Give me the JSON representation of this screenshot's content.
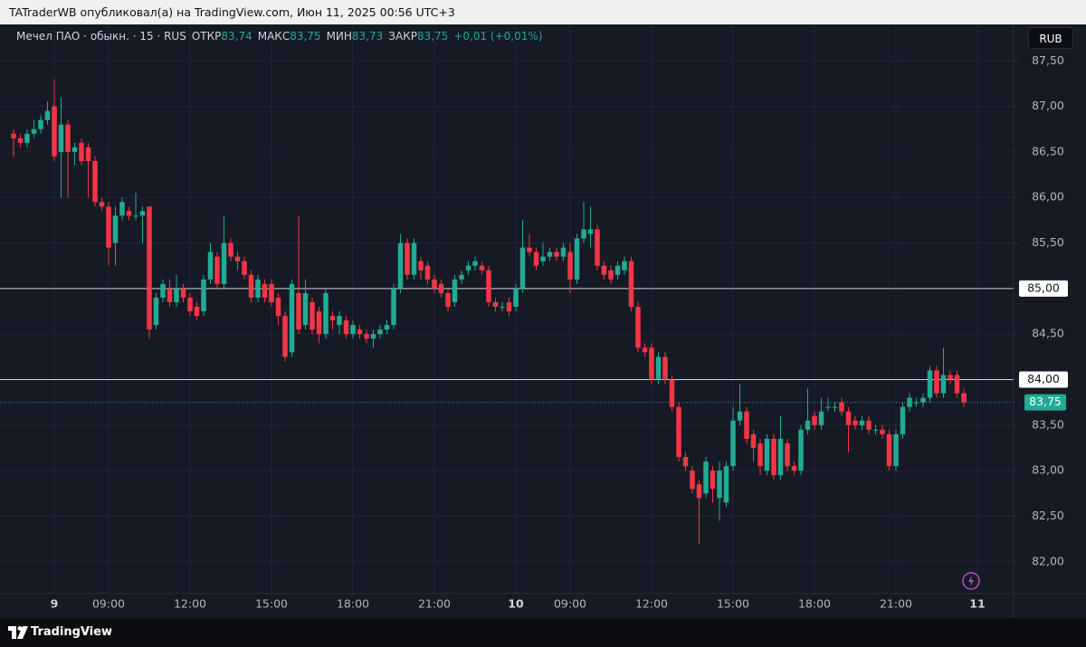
{
  "header": "TATraderWB опубликовал(а) на TradingView.com, Июн 11, 2025 00:56 UTC+3",
  "footer": "TradingView",
  "chart_data": {
    "type": "candlestick",
    "title": "Мечел ПАО · обыкн. · 15 · RUS",
    "ohlc_labels": [
      {
        "name": "ОТКР",
        "label": "83,74"
      },
      {
        "name": "МАКС",
        "label": "83,75"
      },
      {
        "name": "МИН",
        "label": "83,73"
      },
      {
        "name": "ЗАКР",
        "label": "83,75"
      }
    ],
    "change": "+0,01 (+0,01%)",
    "currency": "RUB",
    "up_color": "#22ab94",
    "down_color": "#f23645",
    "grid": true,
    "ylim": [
      81.65,
      87.9
    ],
    "yticks": [
      {
        "value": 82,
        "label": "82,00"
      },
      {
        "value": 82.5,
        "label": "82,50"
      },
      {
        "value": 83,
        "label": "83,00"
      },
      {
        "value": 83.5,
        "label": "83,50"
      },
      {
        "value": 84,
        "label": "84,00"
      },
      {
        "value": 84.5,
        "label": "84,50"
      },
      {
        "value": 85,
        "label": "85,00"
      },
      {
        "value": 85.5,
        "label": "85,50"
      },
      {
        "value": 86,
        "label": "86,00"
      },
      {
        "value": 86.5,
        "label": "86,50"
      },
      {
        "value": 87,
        "label": "87,00"
      },
      {
        "value": 87.5,
        "label": "87,50"
      }
    ],
    "price_lines": [
      {
        "value": 85,
        "label": "85,00"
      },
      {
        "value": 84,
        "label": "84,00"
      }
    ],
    "last_price": {
      "value": 83.75,
      "label": "83,75"
    },
    "categories": [
      null,
      null,
      null,
      null,
      null,
      null,
      "9",
      null,
      null,
      null,
      null,
      null,
      null,
      null,
      "09:00",
      null,
      null,
      null,
      null,
      null,
      null,
      null,
      null,
      null,
      null,
      null,
      "12:00",
      null,
      null,
      null,
      null,
      null,
      null,
      null,
      null,
      null,
      null,
      null,
      "15:00",
      null,
      null,
      null,
      null,
      null,
      null,
      null,
      null,
      null,
      null,
      null,
      "18:00",
      null,
      null,
      null,
      null,
      null,
      null,
      null,
      null,
      null,
      null,
      null,
      "21:00",
      null,
      null,
      null,
      null,
      null,
      null,
      null,
      null,
      null,
      null,
      null,
      "10",
      null,
      null,
      null,
      null,
      null,
      null,
      null,
      "09:00",
      null,
      null,
      null,
      null,
      null,
      null,
      null,
      null,
      null,
      null,
      null,
      "12:00",
      null,
      null,
      null,
      null,
      null,
      null,
      null,
      null,
      null,
      null,
      null,
      "15:00",
      null,
      null,
      null,
      null,
      null,
      null,
      null,
      null,
      null,
      null,
      null,
      "18:00",
      null,
      null,
      null,
      null,
      null,
      null,
      null,
      null,
      null,
      null,
      null,
      "21:00",
      null,
      null,
      null,
      null,
      null,
      null,
      null,
      null,
      null,
      null,
      null,
      "11"
    ],
    "open": [
      86.7,
      86.65,
      86.6,
      86.7,
      86.75,
      86.85,
      87.0,
      86.5,
      86.8,
      86.5,
      86.6,
      86.55,
      86.4,
      85.95,
      85.9,
      85.5,
      85.8,
      85.85,
      85.8,
      85.8,
      85.9,
      84.6,
      84.9,
      85.0,
      84.85,
      85.0,
      84.9,
      84.8,
      84.75,
      85.1,
      85.35,
      85.05,
      85.5,
      85.35,
      85.3,
      85.15,
      84.9,
      85.05,
      85.05,
      84.9,
      84.7,
      84.3,
      84.95,
      84.6,
      84.85,
      84.75,
      84.5,
      84.7,
      84.6,
      84.65,
      84.5,
      84.55,
      84.5,
      84.45,
      84.5,
      84.55,
      84.6,
      85.0,
      85.5,
      85.15,
      85.3,
      85.25,
      85.1,
      85.05,
      84.95,
      84.85,
      85.1,
      85.2,
      85.25,
      85.25,
      85.2,
      84.85,
      84.8,
      84.85,
      84.8,
      85.0,
      85.45,
      85.4,
      85.3,
      85.35,
      85.4,
      85.35,
      85.4,
      85.1,
      85.55,
      85.6,
      85.65,
      85.25,
      85.2,
      85.15,
      85.2,
      85.3,
      84.8,
      84.35,
      84.35,
      84.0,
      84.25,
      84.0,
      83.7,
      83.15,
      83.0,
      82.85,
      82.75,
      83.0,
      82.7,
      82.65,
      83.05,
      83.55,
      83.65,
      83.4,
      83.3,
      83.0,
      83.35,
      82.95,
      83.3,
      83.05,
      83.0,
      83.45,
      83.6,
      83.5,
      83.7,
      83.7,
      83.75,
      83.65,
      83.55,
      83.5,
      83.55,
      83.45,
      83.45,
      83.4,
      83.05,
      83.4,
      83.7,
      83.75,
      83.75,
      83.8,
      84.1,
      83.85,
      84.05,
      84.05,
      83.85,
      null,
      null
    ],
    "high": [
      86.75,
      86.7,
      86.75,
      86.85,
      86.9,
      87.05,
      87.3,
      87.1,
      86.85,
      86.6,
      86.65,
      86.6,
      86.45,
      86.0,
      85.95,
      85.9,
      86.0,
      85.9,
      86.05,
      85.9,
      85.9,
      84.95,
      85.1,
      85.1,
      85.15,
      85.05,
      84.95,
      84.85,
      85.15,
      85.5,
      85.4,
      85.8,
      85.55,
      85.4,
      85.35,
      85.2,
      85.15,
      85.1,
      85.1,
      84.95,
      84.75,
      85.1,
      85.8,
      85.1,
      84.9,
      84.8,
      85.0,
      84.75,
      84.75,
      84.7,
      84.65,
      84.6,
      84.55,
      84.55,
      84.6,
      84.65,
      85.05,
      85.6,
      85.55,
      85.55,
      85.35,
      85.3,
      85.15,
      85.1,
      85.0,
      85.15,
      85.2,
      85.3,
      85.35,
      85.3,
      85.25,
      84.9,
      84.85,
      84.9,
      85.05,
      85.75,
      85.6,
      85.45,
      85.5,
      85.45,
      85.45,
      85.5,
      85.5,
      85.6,
      85.95,
      85.9,
      85.7,
      85.3,
      85.25,
      85.3,
      85.35,
      85.35,
      84.85,
      84.4,
      84.4,
      84.3,
      84.3,
      84.05,
      83.75,
      83.2,
      83.05,
      82.9,
      83.15,
      83.05,
      83.1,
      83.1,
      83.7,
      83.95,
      83.7,
      83.45,
      83.35,
      83.4,
      83.4,
      83.6,
      83.35,
      83.1,
      83.5,
      83.9,
      83.65,
      83.8,
      83.8,
      83.75,
      83.8,
      83.7,
      83.6,
      83.6,
      83.6,
      83.5,
      83.5,
      83.45,
      83.45,
      83.75,
      83.85,
      83.8,
      83.85,
      84.15,
      84.15,
      84.35,
      84.1,
      84.1,
      83.9,
      null,
      null
    ],
    "low": [
      86.45,
      86.55,
      86.55,
      86.65,
      86.7,
      86.8,
      86.4,
      86.0,
      86.0,
      86.35,
      86.35,
      86.0,
      85.9,
      85.85,
      85.25,
      85.25,
      85.75,
      85.75,
      85.75,
      85.5,
      84.45,
      84.55,
      84.85,
      84.8,
      84.8,
      84.85,
      84.7,
      84.65,
      84.7,
      85.05,
      85.0,
      85.0,
      85.3,
      85.2,
      85.1,
      84.85,
      84.85,
      84.85,
      84.8,
      84.6,
      84.2,
      84.25,
      84.5,
      84.55,
      84.5,
      84.4,
      84.45,
      84.55,
      84.5,
      84.45,
      84.45,
      84.45,
      84.4,
      84.35,
      84.45,
      84.5,
      84.55,
      84.95,
      85.1,
      85.1,
      85.1,
      85.05,
      84.95,
      84.9,
      84.75,
      84.8,
      85.05,
      85.15,
      85.2,
      85.15,
      84.8,
      84.75,
      84.75,
      84.7,
      84.75,
      84.95,
      85.35,
      85.2,
      85.25,
      85.3,
      85.3,
      85.3,
      84.95,
      85.05,
      85.5,
      85.45,
      85.2,
      85.1,
      85.05,
      85.1,
      85.15,
      84.75,
      84.3,
      84.25,
      83.95,
      83.95,
      83.95,
      83.65,
      83.1,
      83.0,
      82.75,
      82.2,
      82.7,
      82.65,
      82.45,
      82.6,
      83.0,
      83.5,
      83.3,
      83.1,
      82.95,
      82.95,
      82.9,
      82.9,
      83.0,
      82.95,
      82.95,
      83.4,
      83.45,
      83.45,
      83.65,
      83.65,
      83.6,
      83.2,
      83.45,
      83.45,
      83.4,
      83.4,
      83.35,
      83.0,
      83.0,
      83.35,
      83.65,
      83.7,
      83.7,
      83.75,
      83.8,
      83.8,
      83.95,
      83.8,
      83.7,
      null,
      null
    ],
    "close": [
      86.65,
      86.6,
      86.7,
      86.75,
      86.85,
      86.95,
      86.45,
      86.8,
      86.5,
      86.55,
      86.4,
      86.4,
      85.95,
      85.9,
      85.45,
      85.8,
      85.95,
      85.8,
      85.8,
      85.85,
      84.55,
      84.9,
      85.05,
      84.85,
      85.0,
      84.9,
      84.75,
      84.7,
      85.1,
      85.4,
      85.05,
      85.5,
      85.35,
      85.3,
      85.15,
      84.9,
      85.1,
      84.9,
      84.85,
      84.7,
      84.25,
      85.05,
      84.55,
      84.95,
      84.55,
      84.5,
      84.95,
      84.65,
      84.7,
      84.5,
      84.6,
      84.5,
      84.45,
      84.5,
      84.55,
      84.6,
      85.0,
      85.5,
      85.15,
      85.5,
      85.2,
      85.1,
      85.0,
      84.95,
      84.8,
      85.1,
      85.15,
      85.25,
      85.3,
      85.2,
      84.85,
      84.8,
      84.8,
      84.75,
      85.0,
      85.45,
      85.4,
      85.25,
      85.35,
      85.4,
      85.35,
      85.45,
      85.1,
      85.55,
      85.65,
      85.65,
      85.25,
      85.15,
      85.1,
      85.25,
      85.3,
      84.8,
      84.35,
      84.3,
      84.0,
      84.25,
      84.0,
      83.7,
      83.15,
      83.05,
      82.8,
      82.7,
      83.1,
      82.8,
      83.0,
      83.05,
      83.55,
      83.65,
      83.35,
      83.25,
      83.05,
      83.35,
      82.95,
      83.35,
      83.05,
      83.0,
      83.45,
      83.55,
      83.5,
      83.65,
      83.7,
      83.7,
      83.65,
      83.5,
      83.5,
      83.55,
      83.45,
      83.45,
      83.4,
      83.05,
      83.4,
      83.7,
      83.8,
      83.75,
      83.8,
      84.1,
      83.85,
      84.05,
      84.0,
      83.85,
      83.75,
      null,
      null
    ]
  }
}
